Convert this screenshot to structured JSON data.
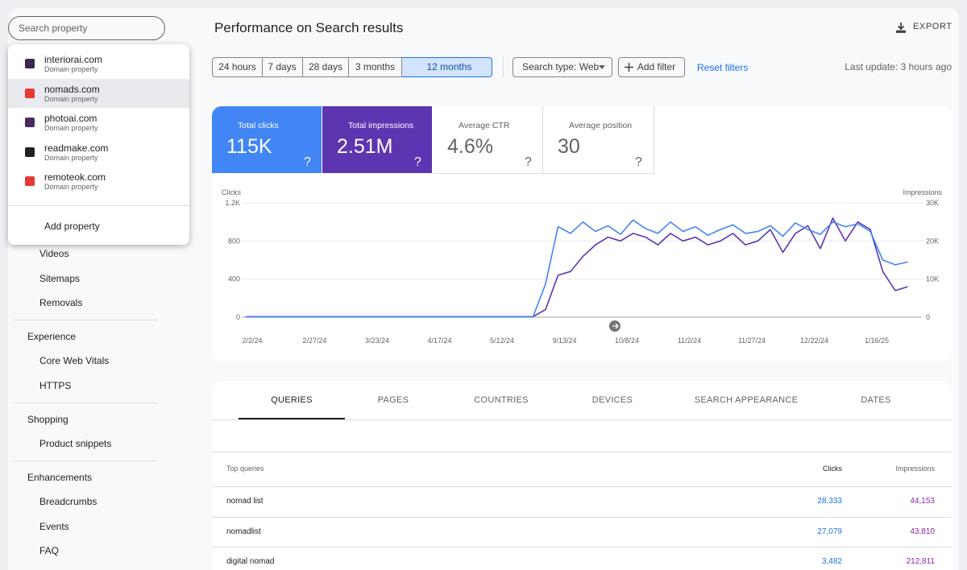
{
  "search": {
    "placeholder": "Search property"
  },
  "properties": {
    "items": [
      {
        "name": "interiorai.com",
        "kind": "Domain property"
      },
      {
        "name": "nomads.com",
        "kind": "Domain property"
      },
      {
        "name": "photoai.com",
        "kind": "Domain property"
      },
      {
        "name": "readmake.com",
        "kind": "Domain property"
      },
      {
        "name": "remoteok.com",
        "kind": "Domain property"
      }
    ],
    "highlighted": 1,
    "add": "Add property"
  },
  "sidebar": {
    "items": [
      "Videos",
      "Sitemaps",
      "Removals"
    ],
    "sections": [
      {
        "title": "Experience",
        "items": [
          "Core Web Vitals",
          "HTTPS"
        ]
      },
      {
        "title": "Shopping",
        "items": [
          "Product snippets"
        ]
      },
      {
        "title": "Enhancements",
        "items": [
          "Breadcrumbs",
          "Events",
          "FAQ"
        ]
      }
    ]
  },
  "header": {
    "title": "Performance on Search results",
    "export": "EXPORT"
  },
  "filters": {
    "ranges": [
      "24 hours",
      "7 days",
      "28 days",
      "3 months",
      "12 months"
    ],
    "selected": 4,
    "search_type": "Search type: Web",
    "add_filter": "Add filter",
    "reset": "Reset filters",
    "last_update": "Last update: 3 hours ago"
  },
  "metrics": [
    {
      "label": "Total clicks",
      "value": "115K",
      "checked": true,
      "color": "#4285f4"
    },
    {
      "label": "Total impressions",
      "value": "2.51M",
      "checked": true,
      "color": "#5e35b1"
    },
    {
      "label": "Average CTR",
      "value": "4.6%",
      "checked": false
    },
    {
      "label": "Average position",
      "value": "30",
      "checked": false
    }
  ],
  "chart_data": {
    "type": "line",
    "categories": [
      "2/2/24",
      null,
      null,
      null,
      null,
      "2/27/24",
      null,
      null,
      null,
      null,
      "3/23/24",
      null,
      null,
      null,
      null,
      "4/17/24",
      null,
      null,
      null,
      null,
      "5/12/24",
      null,
      null,
      null,
      null,
      "9/13/24",
      null,
      null,
      null,
      null,
      "10/8/24",
      null,
      null,
      null,
      null,
      "11/2/24",
      null,
      null,
      null,
      null,
      "11/27/24",
      null,
      null,
      null,
      null,
      "12/22/24",
      null,
      null,
      null,
      null,
      "1/16/25",
      null,
      null,
      null
    ],
    "series": [
      {
        "name": "Clicks",
        "color": "#4285f4",
        "values": [
          5,
          5,
          5,
          5,
          5,
          5,
          5,
          5,
          5,
          5,
          5,
          5,
          5,
          5,
          5,
          5,
          5,
          5,
          5,
          5,
          5,
          5,
          5,
          5,
          350,
          950,
          880,
          1000,
          900,
          960,
          870,
          1020,
          930,
          880,
          1000,
          900,
          950,
          860,
          920,
          970,
          880,
          900,
          960,
          850,
          990,
          920,
          870,
          1000,
          950,
          980,
          900,
          600,
          550,
          580
        ]
      },
      {
        "name": "Impressions",
        "color": "#5e35b1",
        "axis": "y2",
        "values": [
          150,
          150,
          150,
          150,
          150,
          150,
          150,
          150,
          150,
          150,
          150,
          150,
          150,
          150,
          150,
          150,
          150,
          150,
          150,
          150,
          150,
          150,
          150,
          150,
          2000,
          11000,
          12000,
          16000,
          19000,
          21000,
          20000,
          22000,
          21000,
          19000,
          22000,
          20000,
          21000,
          19000,
          20000,
          22000,
          19000,
          20000,
          23000,
          17000,
          22000,
          24000,
          18000,
          26000,
          20000,
          25000,
          23000,
          12000,
          7000,
          8000
        ]
      }
    ],
    "ylim": [
      0,
      1200
    ],
    "yticks": [
      0,
      400,
      800,
      {
        "value": 1200,
        "label": "1.2K"
      }
    ],
    "y2lim": [
      0,
      30000
    ],
    "y2ticks": [
      0,
      {
        "value": 10000,
        "label": "10K"
      },
      {
        "value": 20000,
        "label": "20K"
      },
      {
        "value": 30000,
        "label": "30K"
      }
    ],
    "grid": true
  },
  "table": {
    "tabs": [
      "QUERIES",
      "PAGES",
      "COUNTRIES",
      "DEVICES",
      "SEARCH APPEARANCE",
      "DATES"
    ],
    "active": 0,
    "columns": [
      "Top queries",
      "Clicks",
      "Impressions"
    ],
    "rows": [
      [
        "nomad list",
        "28,333",
        "44,153"
      ],
      [
        "nomadlist",
        "27,079",
        "43,810"
      ],
      [
        "digital nomad",
        "3,482",
        "212,811"
      ]
    ]
  }
}
